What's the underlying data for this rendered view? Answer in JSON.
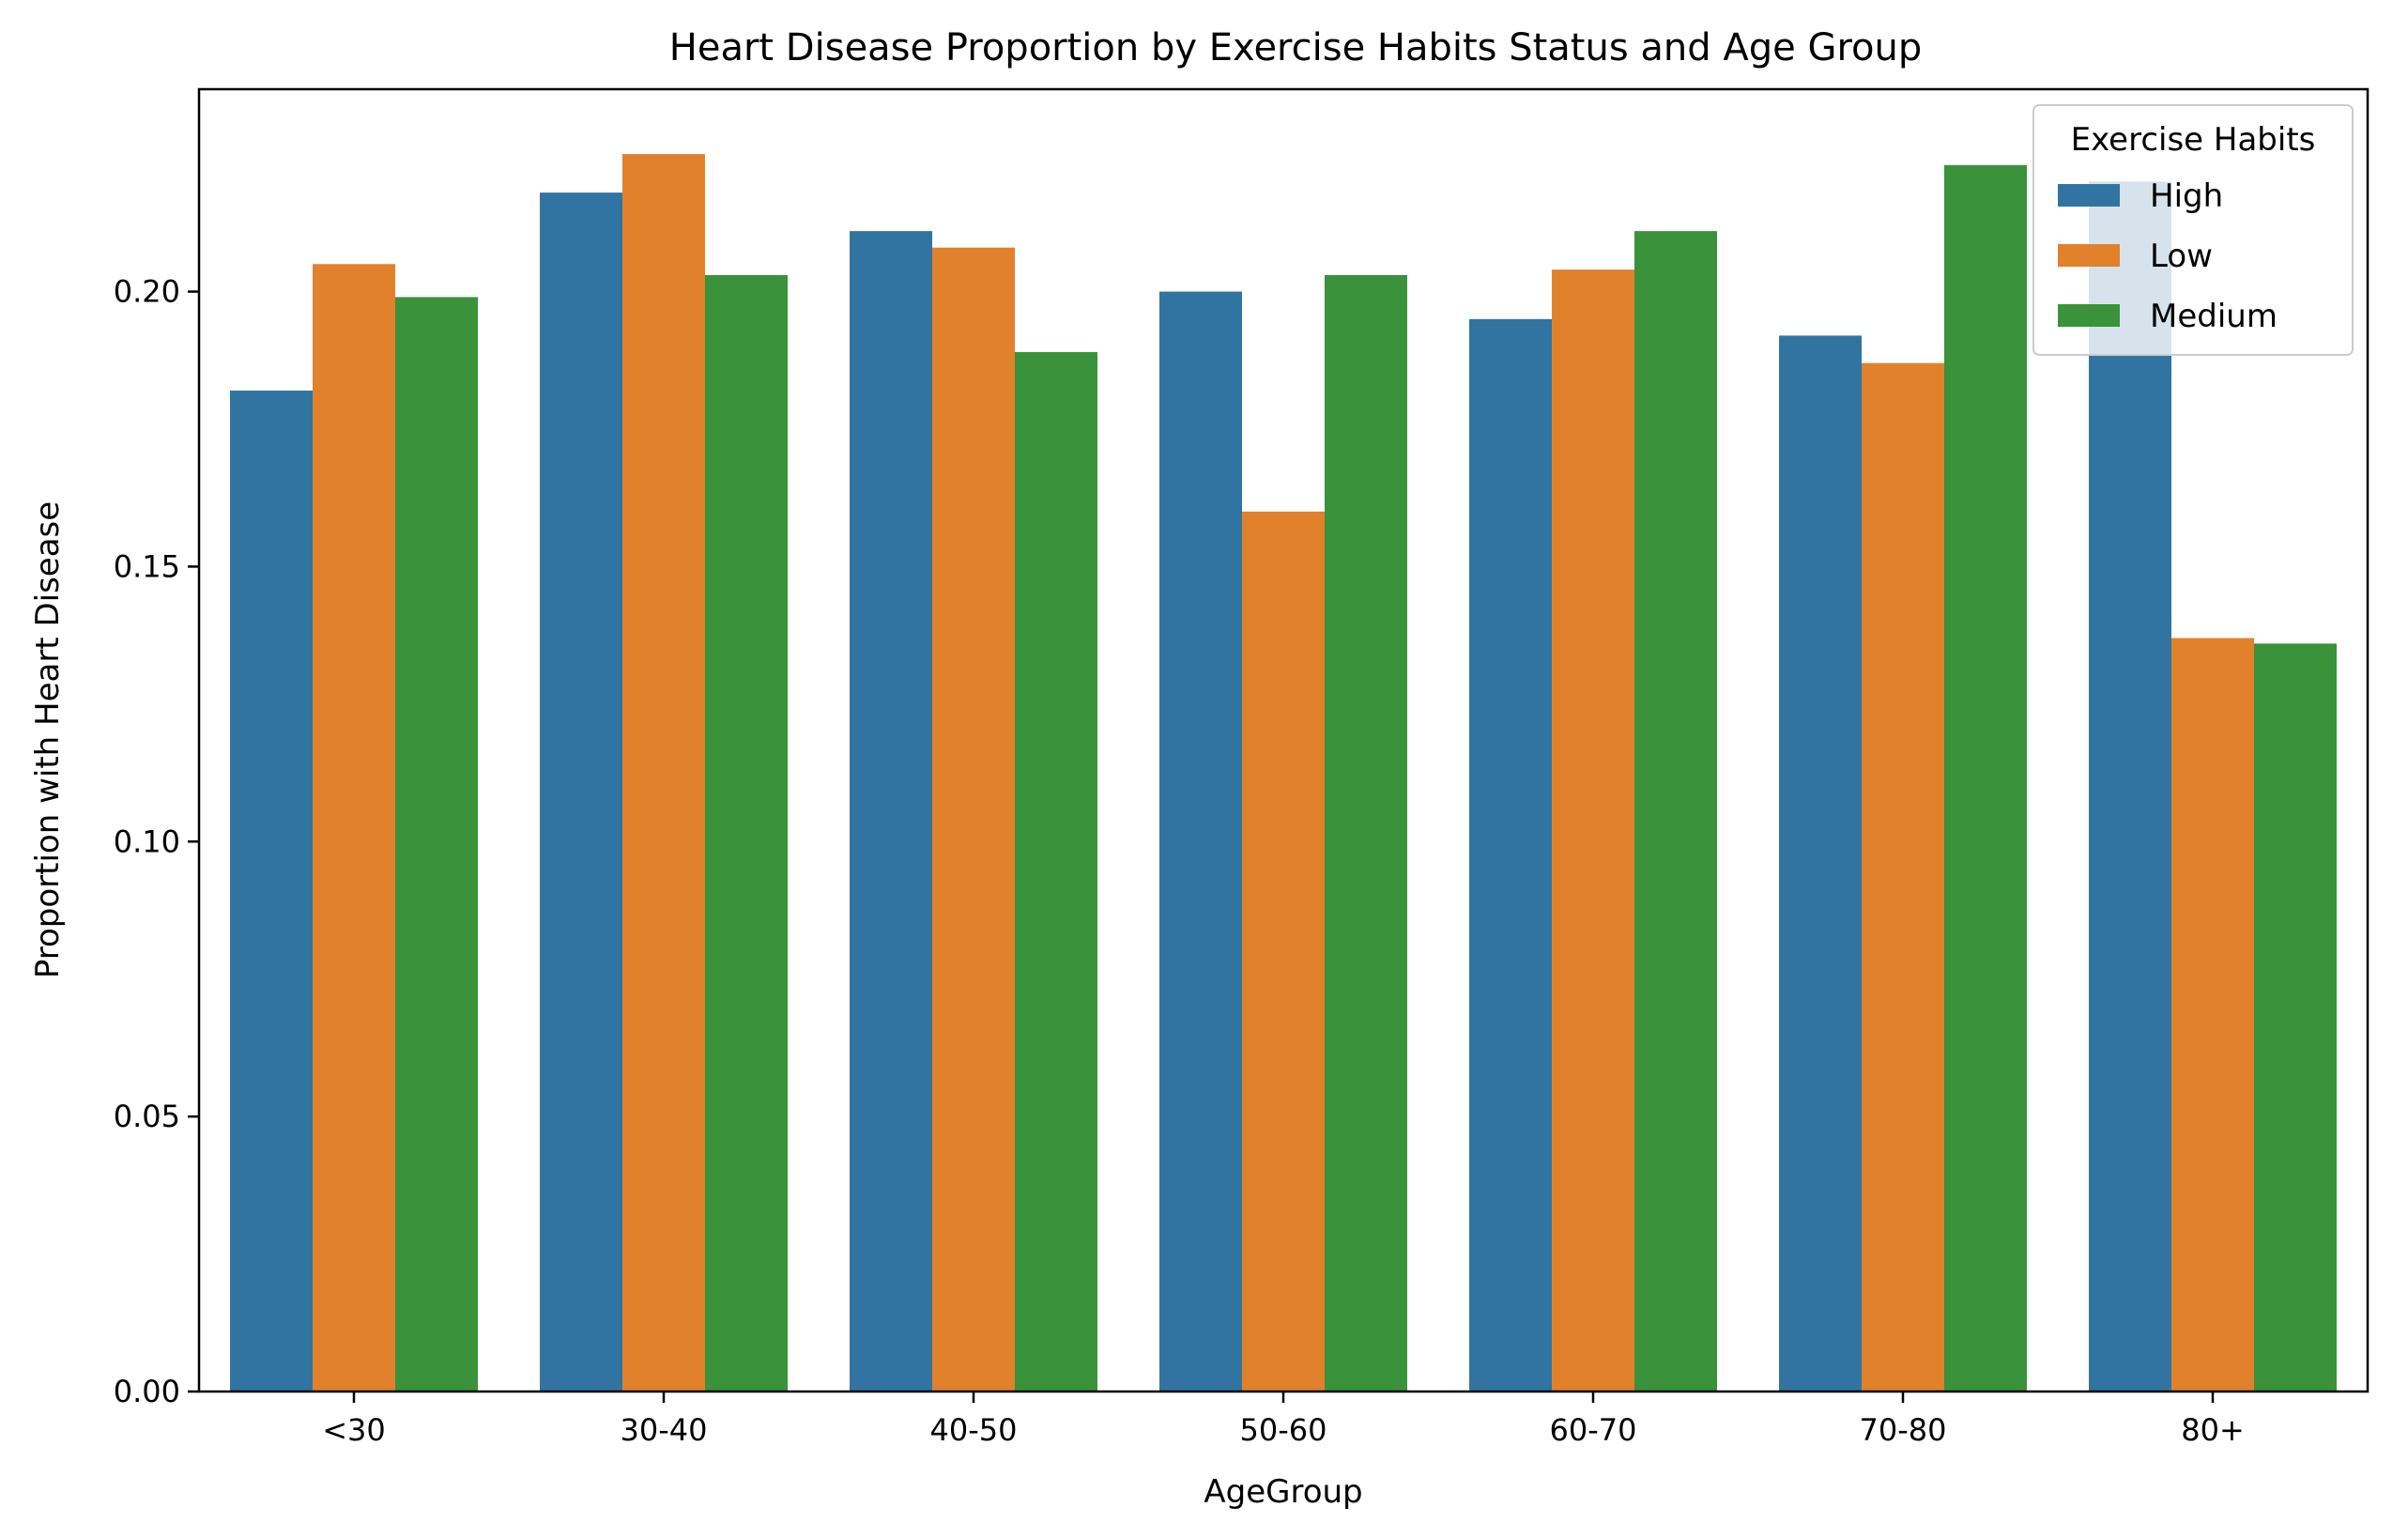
{
  "chart_data": {
    "type": "bar",
    "title": "Heart Disease Proportion by Exercise Habits Status and Age Group",
    "xlabel": "AgeGroup",
    "ylabel": "Proportion with Heart Disease",
    "categories": [
      "<30",
      "30-40",
      "40-50",
      "50-60",
      "60-70",
      "70-80",
      "80+"
    ],
    "series": [
      {
        "name": "High",
        "color": "#3274a1",
        "values": [
          0.182,
          0.218,
          0.211,
          0.2,
          0.195,
          0.192,
          0.22
        ]
      },
      {
        "name": "Low",
        "color": "#e1812c",
        "values": [
          0.205,
          0.225,
          0.208,
          0.16,
          0.204,
          0.187,
          0.137
        ]
      },
      {
        "name": "Medium",
        "color": "#3a923a",
        "values": [
          0.199,
          0.203,
          0.189,
          0.203,
          0.211,
          0.223,
          0.136
        ]
      }
    ],
    "ylim": [
      0,
      0.2368
    ],
    "yticks": [
      0.0,
      0.05,
      0.1,
      0.15,
      0.2
    ],
    "ytick_labels": [
      "0.00",
      "0.05",
      "0.10",
      "0.15",
      "0.20"
    ],
    "legend": {
      "title": "Exercise Habits",
      "placement": "top-right"
    },
    "grid": false
  }
}
